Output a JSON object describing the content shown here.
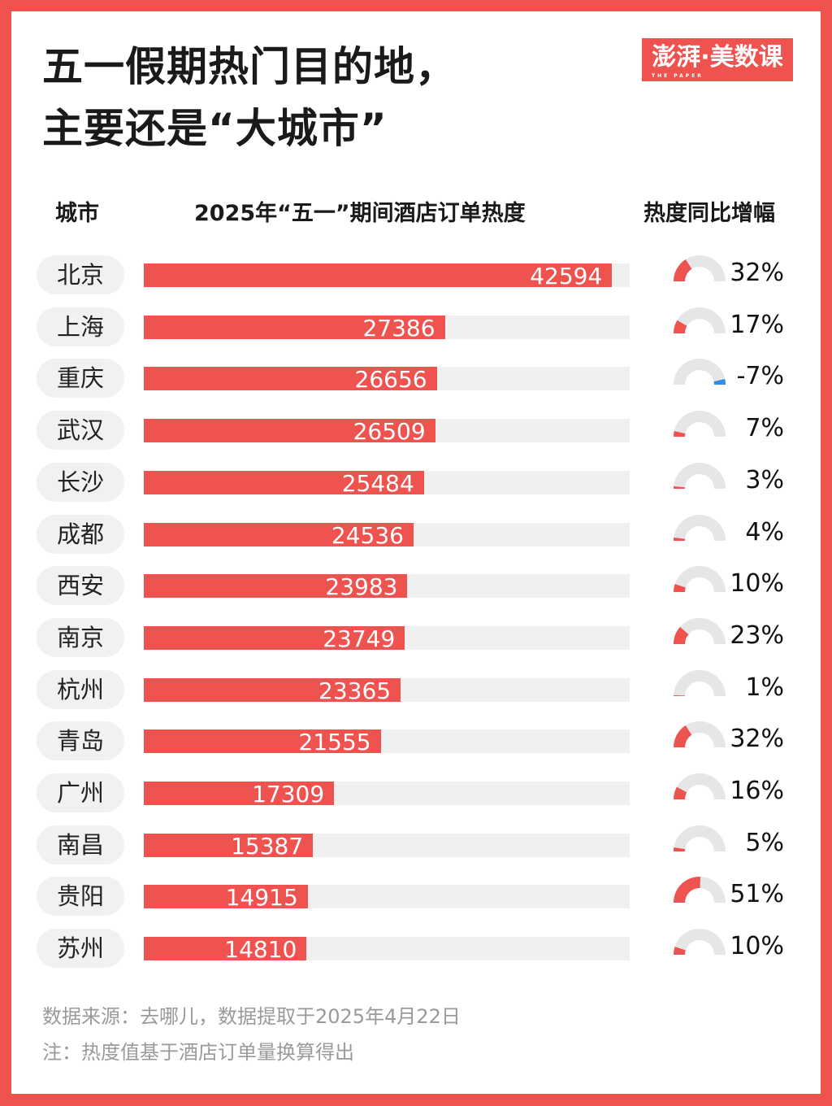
{
  "title": {
    "line1": "五一假期热门目的地，",
    "line2": "主要还是“大城市”"
  },
  "logo": {
    "text": "澎湃·美数课",
    "sub": "THE PAPER"
  },
  "colors": {
    "accent": "#ee5350",
    "negative": "#2f8de4",
    "track": "#e6e6e6"
  },
  "chart_data": {
    "type": "bar",
    "title": "2025年“五一”期间酒店订单热度",
    "headers": {
      "city": "城市",
      "value": "2025年“五一”期间酒店订单热度",
      "growth": "热度同比增幅"
    },
    "categories": [
      "北京",
      "上海",
      "重庆",
      "武汉",
      "长沙",
      "成都",
      "西安",
      "南京",
      "杭州",
      "青岛",
      "广州",
      "南昌",
      "贵阳",
      "苏州"
    ],
    "values": [
      42594,
      27386,
      26656,
      26509,
      25484,
      24536,
      23983,
      23749,
      23365,
      21555,
      17309,
      15387,
      14915,
      14810
    ],
    "growth": [
      32,
      17,
      -7,
      7,
      3,
      4,
      10,
      23,
      1,
      32,
      16,
      5,
      51,
      10
    ],
    "xlim": [
      0,
      44200
    ]
  },
  "footer": {
    "source": "数据来源：去哪儿，数据提取于2025年4月22日",
    "note": "注：热度值基于酒店订单量换算得出"
  }
}
